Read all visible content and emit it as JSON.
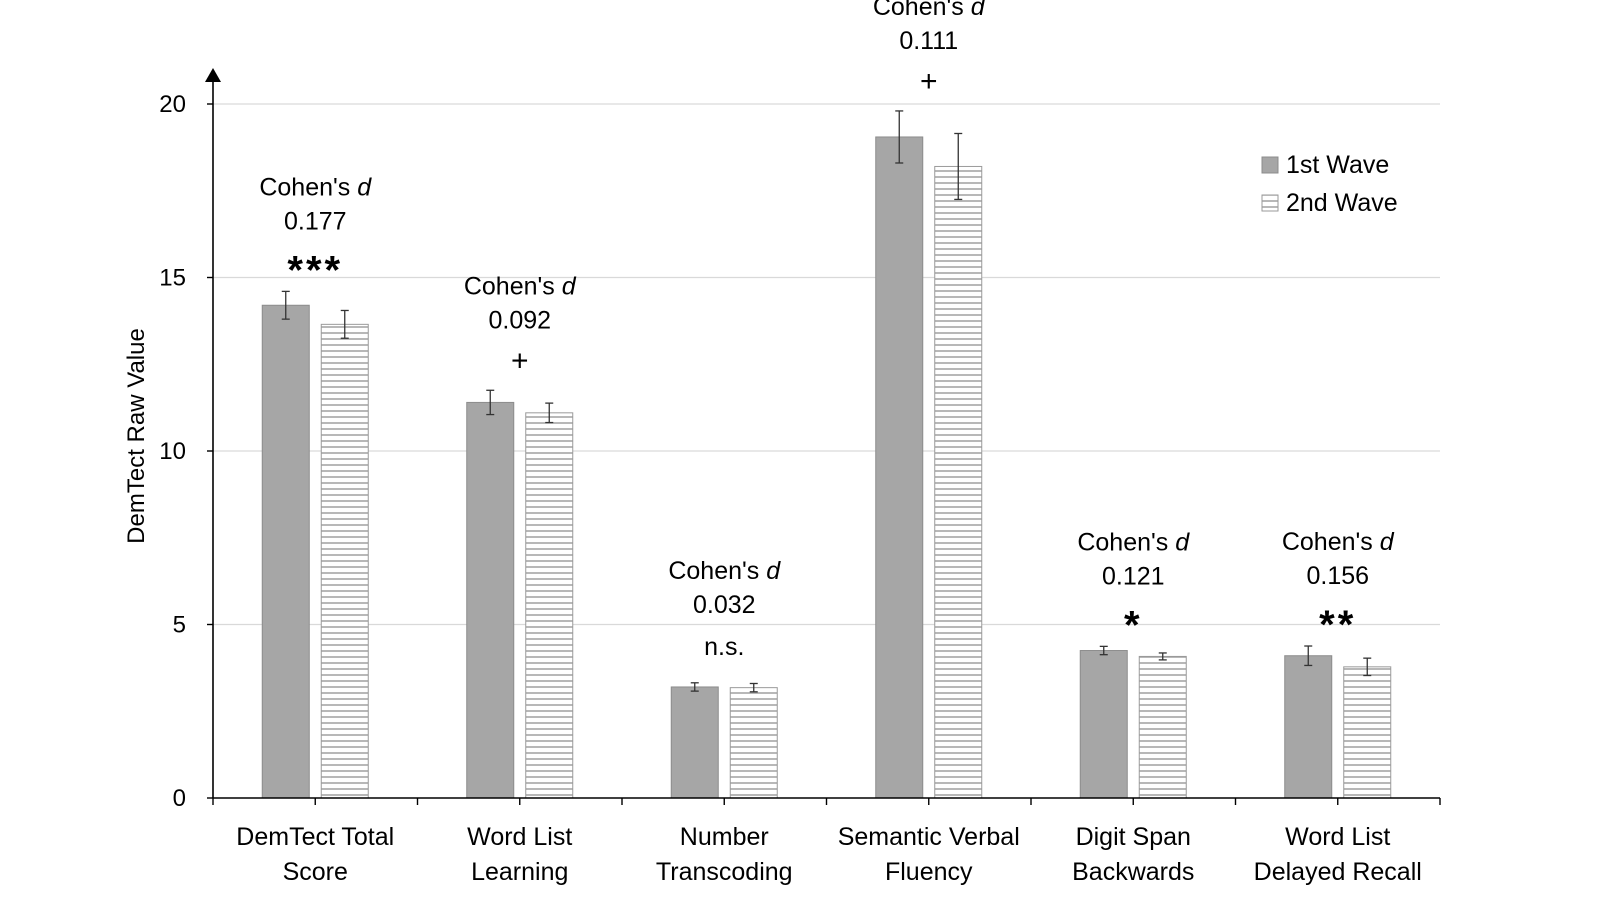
{
  "chart_data": {
    "type": "bar",
    "ylabel": "DemTect Raw Value",
    "ylim": [
      0,
      20
    ],
    "yticks": [
      "0",
      "5",
      "10",
      "15",
      "20"
    ],
    "grid": true,
    "legend_position": "top-right",
    "categories": [
      [
        "DemTect Total",
        "Score"
      ],
      [
        "Word List",
        "Learning"
      ],
      [
        "Number",
        "Transcoding"
      ],
      [
        "Semantic Verbal",
        "Fluency"
      ],
      [
        "Digit Span",
        "Backwards"
      ],
      [
        "Word List",
        "Delayed Recall"
      ]
    ],
    "series": [
      {
        "name": "1st Wave",
        "color": "#a6a6a6",
        "pattern": "solid",
        "values": [
          14.2,
          11.4,
          3.2,
          19.05,
          4.25,
          4.1
        ],
        "error": [
          0.4,
          0.35,
          0.12,
          0.75,
          0.12,
          0.28
        ]
      },
      {
        "name": "2nd Wave",
        "color": "#a6a6a6",
        "pattern": "horizontal-lines",
        "values": [
          13.65,
          11.1,
          3.18,
          18.2,
          4.08,
          3.78
        ],
        "error": [
          0.4,
          0.28,
          0.12,
          0.95,
          0.1,
          0.25
        ]
      }
    ],
    "annotations": [
      {
        "label": "Cohen's ",
        "italic": "d",
        "value": "0.177",
        "sig": "***"
      },
      {
        "label": "Cohen's ",
        "italic": "d",
        "value": "0.092",
        "sig": "+"
      },
      {
        "label": "Cohen's ",
        "italic": "d",
        "value": "0.032",
        "sig": "n.s."
      },
      {
        "label": "Cohen's ",
        "italic": "d",
        "value": "0.111",
        "sig": "+"
      },
      {
        "label": "Cohen's ",
        "italic": "d",
        "value": "0.121",
        "sig": "*"
      },
      {
        "label": "Cohen's ",
        "italic": "d",
        "value": "0.156",
        "sig": "**"
      }
    ]
  }
}
